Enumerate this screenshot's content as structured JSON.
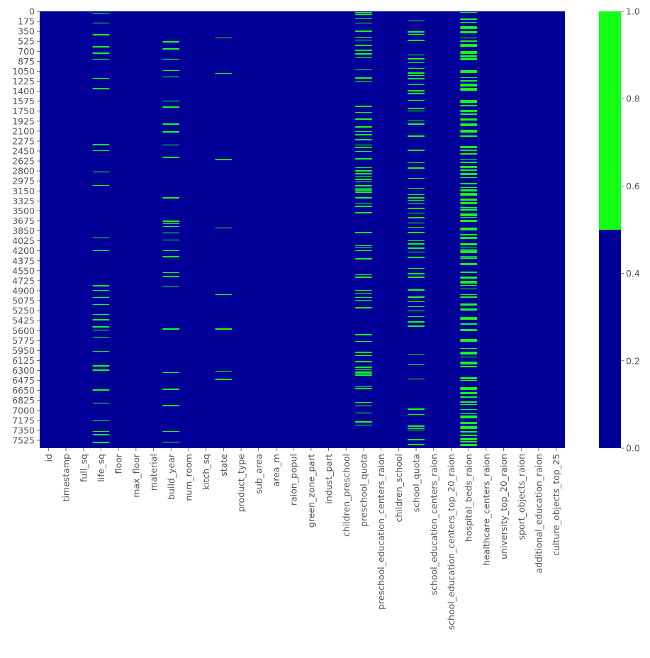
{
  "chart_data": {
    "type": "heatmap",
    "title": "",
    "xlabel": "",
    "ylabel": "",
    "columns": [
      "id",
      "timestamp",
      "full_sq",
      "life_sq",
      "floor",
      "max_floor",
      "material",
      "build_year",
      "num_room",
      "kitch_sq",
      "state",
      "product_type",
      "sub_area",
      "area_m",
      "raion_popul",
      "green_zone_part",
      "indust_part",
      "children_preschool",
      "preschool_quota",
      "preschool_education_centers_raion",
      "children_school",
      "school_quota",
      "school_education_centers_raion",
      "school_education_centers_top_20_raion",
      "hospital_beds_raion",
      "healthcare_centers_raion",
      "university_top_20_raion",
      "sport_objects_raion",
      "additional_education_raion",
      "culture_objects_top_25"
    ],
    "row_count": 7662,
    "row_ticks": [
      "0",
      "175",
      "350",
      "525",
      "700",
      "875",
      "1050",
      "1225",
      "1400",
      "1575",
      "1750",
      "1925",
      "2100",
      "2275",
      "2450",
      "2625",
      "2800",
      "2975",
      "3150",
      "3325",
      "3500",
      "3675",
      "3850",
      "4025",
      "4200",
      "4375",
      "4550",
      "4725",
      "4900",
      "5075",
      "5250",
      "5425",
      "5600",
      "5775",
      "5950",
      "6125",
      "6300",
      "6475",
      "6650",
      "6825",
      "7000",
      "7175",
      "7350",
      "7525"
    ],
    "value_meaning": "1 = missing value, 0 = present",
    "missing_density": [
      0,
      0,
      0,
      0.09,
      0,
      0,
      0,
      0.09,
      0,
      0,
      0.03,
      0.001,
      0,
      0,
      0,
      0,
      0,
      0,
      0.26,
      0,
      0,
      0.26,
      0,
      0,
      0.47,
      0,
      0,
      0,
      0,
      0
    ],
    "missing_row_end": [
      0,
      0,
      0,
      7662,
      0,
      0,
      0,
      7662,
      0,
      0,
      7662,
      4800,
      0,
      0,
      0,
      0,
      0,
      0,
      7662,
      0,
      0,
      7662,
      0,
      0,
      7662,
      0,
      0,
      0,
      0,
      0
    ],
    "colors": {
      "present": "#000099",
      "missing": "#15ff15",
      "text": "#555555"
    },
    "colorbar": {
      "ticks": [
        "0.0",
        "0.2",
        "0.4",
        "0.6",
        "0.8",
        "1.0"
      ],
      "range": [
        0,
        1
      ]
    }
  }
}
